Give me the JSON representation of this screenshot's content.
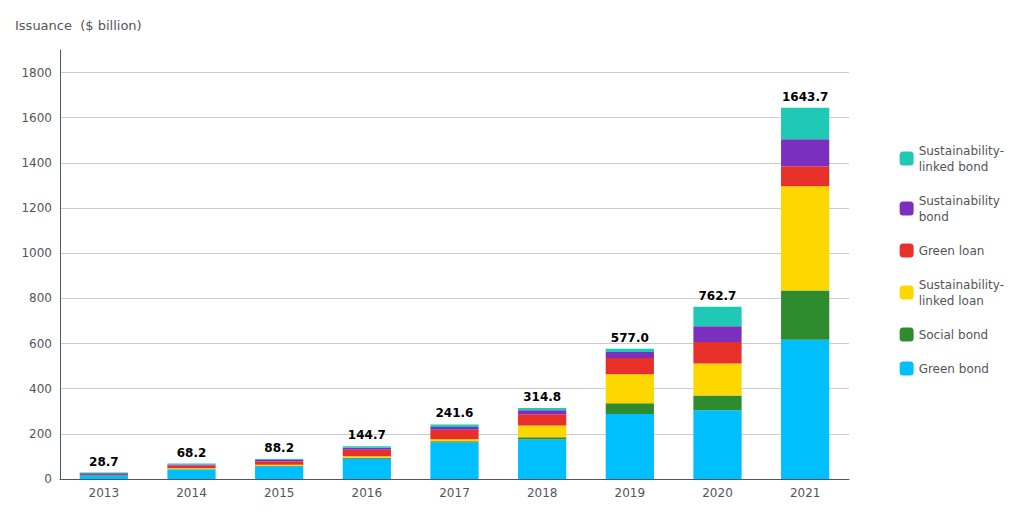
{
  "chart_data": {
    "type": "bar",
    "stacked": true,
    "ylabel": "Issuance  ($ billion)",
    "categories": [
      "2013",
      "2014",
      "2015",
      "2016",
      "2017",
      "2018",
      "2019",
      "2020",
      "2021"
    ],
    "series": [
      {
        "name": "Green bond",
        "color": "#00BFFF",
        "values": [
          17.5,
          42.0,
          55.0,
          90.0,
          162.0,
          175.0,
          288.0,
          305.0,
          617.0
        ]
      },
      {
        "name": "Social bond",
        "color": "#2E8B2E",
        "values": [
          0.0,
          1.5,
          2.5,
          4.0,
          5.0,
          10.0,
          48.0,
          65.0,
          218.0
        ]
      },
      {
        "name": "Sustainability-\nlinked loan",
        "color": "#FFD700",
        "values": [
          0.0,
          4.0,
          5.5,
          7.0,
          9.0,
          52.0,
          128.0,
          142.0,
          462.0
        ]
      },
      {
        "name": "Green loan",
        "color": "#E8302A",
        "values": [
          4.5,
          12.0,
          15.5,
          28.0,
          42.0,
          50.0,
          72.0,
          95.0,
          88.0
        ]
      },
      {
        "name": "Sustainability\nbond",
        "color": "#7B2FBE",
        "values": [
          3.5,
          5.0,
          6.0,
          9.0,
          12.0,
          18.0,
          27.0,
          70.0,
          120.0
        ]
      },
      {
        "name": "Sustainability-\nlinked bond",
        "color": "#20C9B5",
        "values": [
          3.2,
          3.7,
          3.7,
          6.7,
          11.6,
          9.8,
          14.0,
          85.7,
          138.7
        ]
      }
    ],
    "totals": [
      28.7,
      68.2,
      88.2,
      144.7,
      241.6,
      314.8,
      577.0,
      762.7,
      1643.7
    ],
    "total_labels": [
      "28.7",
      "68.2",
      "88.2",
      "144.7",
      "241.6",
      "314.8",
      "577.0",
      "762.7",
      "1643.7"
    ],
    "ylim": [
      0,
      1900
    ],
    "yticks": [
      0,
      200,
      400,
      600,
      800,
      1000,
      1200,
      1400,
      1600,
      1800
    ],
    "grid": true,
    "legend": "right"
  }
}
